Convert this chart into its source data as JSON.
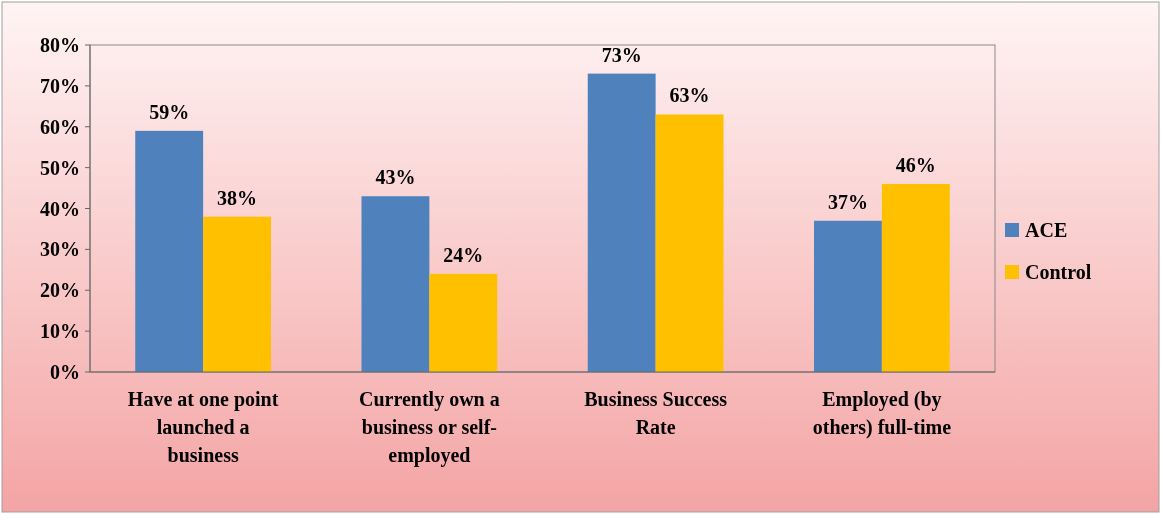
{
  "chart_data": {
    "type": "bar",
    "categories": [
      "Have at one point launched a business",
      "Currently own a business or self-employed",
      "Business Success Rate",
      "Employed (by others) full-time"
    ],
    "series": [
      {
        "name": "ACE",
        "color": "#4f81bd",
        "values": [
          59,
          43,
          73,
          37
        ],
        "value_labels": [
          "59%",
          "43%",
          "73%",
          "37%"
        ]
      },
      {
        "name": "Control",
        "color": "#ffc000",
        "values": [
          38,
          24,
          63,
          46
        ],
        "value_labels": [
          "38%",
          "24%",
          "63%",
          "46%"
        ]
      }
    ],
    "ylim": [
      0,
      80
    ],
    "yticks": [
      {
        "value": 0,
        "label": "0%"
      },
      {
        "value": 10,
        "label": "10%"
      },
      {
        "value": 20,
        "label": "20%"
      },
      {
        "value": 30,
        "label": "30%"
      },
      {
        "value": 40,
        "label": "40%"
      },
      {
        "value": 50,
        "label": "50%"
      },
      {
        "value": 60,
        "label": "60%"
      },
      {
        "value": 70,
        "label": "70%"
      },
      {
        "value": 80,
        "label": "80%"
      }
    ],
    "grid": false,
    "legend": "right"
  }
}
